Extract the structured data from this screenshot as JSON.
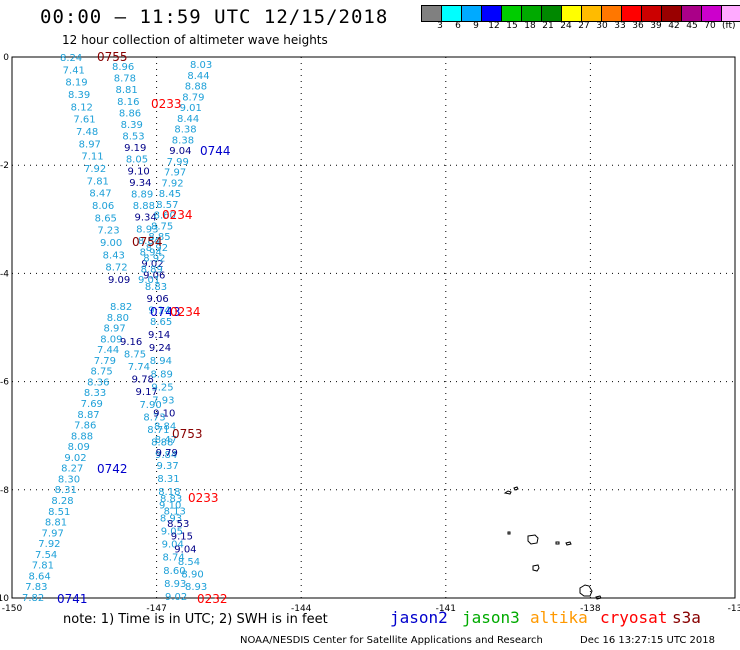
{
  "title": "00:00 – 11:59 UTC 12/15/2018",
  "subtitle": "12 hour collection of altimeter wave heights",
  "colorbar": {
    "colors": [
      "#808080",
      "#00ffff",
      "#00aaff",
      "#0000ff",
      "#00cc00",
      "#00aa00",
      "#008800",
      "#ffff00",
      "#ffbb00",
      "#ff7700",
      "#ff0000",
      "#cc0000",
      "#990000",
      "#aa0088",
      "#cc00cc",
      "#ffaaff",
      "#000000"
    ],
    "labels": [
      "3",
      "6",
      "9",
      "12",
      "15",
      "18",
      "21",
      "24",
      "27",
      "30",
      "33",
      "36",
      "39",
      "42",
      "45",
      "70"
    ],
    "unit": "(ft)"
  },
  "axes": {
    "x_ticks": [
      "-150",
      "-147",
      "-144",
      "-141",
      "-138",
      "-13"
    ],
    "y_ticks": [
      "0",
      "-2",
      "-4",
      "-6",
      "-8",
      "-10"
    ]
  },
  "tracks": {
    "track_a": [
      "8.24",
      "7.41",
      "8.19",
      "8.39",
      "8.12",
      "7.61",
      "7.48",
      "8.97",
      "7.11",
      "7.92",
      "7.81",
      "8.47",
      "8.06",
      "8.65",
      "7.23",
      "9.00",
      "8.43",
      "8.72",
      "9.09"
    ],
    "track_b": [
      "8.96",
      "8.78",
      "8.81",
      "8.16",
      "8.86",
      "8.39",
      "8.53",
      "9.19",
      "8.05",
      "9.10",
      "9.34",
      "8.89",
      "8.88",
      "9.34",
      "8.93",
      "8.84",
      "8.94",
      "9.02",
      "9.06",
      "8.83",
      "9.06",
      "9.14",
      "8.65"
    ],
    "track_c": [
      "8.03",
      "8.44",
      "8.88",
      "8.79",
      "9.01",
      "8.44",
      "8.38",
      "8.38",
      "9.04",
      "7.99",
      "7.97",
      "7.92",
      "8.45",
      "8.57",
      "8.60",
      "8.75",
      "8.85",
      "8.92",
      "8.92",
      "8.89",
      "9.01"
    ],
    "track_d": [
      "8.82",
      "8.80",
      "8.97",
      "8.09",
      "7.44",
      "7.79",
      "8.75",
      "8.36",
      "8.33",
      "7.69",
      "8.87",
      "7.86",
      "8.88",
      "8.09",
      "9.02",
      "8.27",
      "8.30",
      "8.31",
      "8.28",
      "8.51",
      "8.81",
      "7.97",
      "7.92",
      "7.54",
      "7.81",
      "8.64",
      "7.83",
      "7.82"
    ],
    "track_e": [
      "9.16",
      "8.75",
      "7.74",
      "9.78",
      "9.17",
      "7.90",
      "8.73",
      "8.71",
      "8.88",
      "9.84"
    ],
    "track_f": [
      "9.14",
      "9.24",
      "8.94",
      "8.89",
      "9.25",
      "7.93",
      "9.10",
      "8.84",
      "8.47",
      "9.79",
      "9.37",
      "8.31",
      "8.18",
      "9.10",
      "8.93",
      "9.05",
      "9.04",
      "8.74",
      "8.60",
      "8.93",
      "9.02"
    ],
    "track_g": [
      "8.83",
      "8.13",
      "8.53",
      "9.15",
      "9.04",
      "8.54",
      "8.90",
      "8.93"
    ]
  },
  "pass_labels": [
    {
      "id": "p1",
      "text": "0755",
      "color": "#880000"
    },
    {
      "id": "p2",
      "text": "0233",
      "color": "#ff0000"
    },
    {
      "id": "p3",
      "text": "0744",
      "color": "#0000cc"
    },
    {
      "id": "p4",
      "text": "0234",
      "color": "#ff0000"
    },
    {
      "id": "p5",
      "text": "0754",
      "color": "#880000"
    },
    {
      "id": "p6",
      "text": "0743",
      "color": "#0000cc"
    },
    {
      "id": "p7",
      "text": "0234",
      "color": "#ff0000"
    },
    {
      "id": "p8",
      "text": "0753",
      "color": "#880000"
    },
    {
      "id": "p9",
      "text": "0742",
      "color": "#0000cc"
    },
    {
      "id": "p10",
      "text": "0233",
      "color": "#ff0000"
    },
    {
      "id": "p11",
      "text": "0741",
      "color": "#0000cc"
    },
    {
      "id": "p12",
      "text": "0232",
      "color": "#ff0000"
    }
  ],
  "footnote": "note: 1) Time is in UTC; 2) SWH is in feet",
  "legend": [
    {
      "name": "jason2",
      "color": "#0000cc"
    },
    {
      "name": "jason3",
      "color": "#00aa00"
    },
    {
      "name": "altika",
      "color": "#ff9900"
    },
    {
      "name": "cryosat",
      "color": "#ff0000"
    },
    {
      "name": "s3a",
      "color": "#880000"
    }
  ],
  "credit": "NOAA/NESDIS Center for Satellite Applications and Research",
  "timestamp": "Dec 16 13:27:15 UTC 2018",
  "colors": {
    "track_light": "#1ea0d8",
    "track_dark": "#000088",
    "grid": "#000000"
  }
}
